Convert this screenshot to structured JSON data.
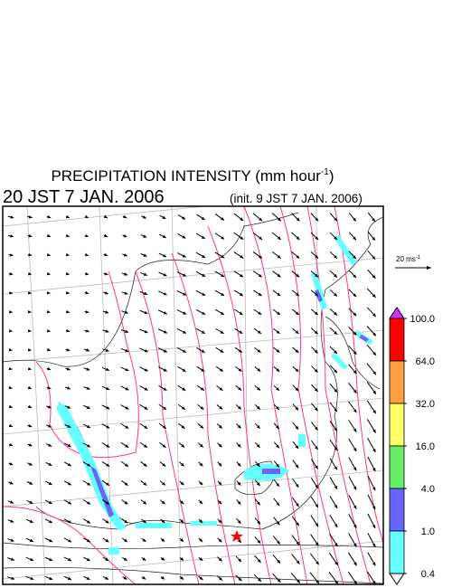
{
  "header": {
    "title_prefix": "PRECIPITATION INTENSITY (mm hour",
    "title_sup": "-1",
    "title_suffix": ")",
    "valid_time": "20 JST 7 JAN. 2006",
    "init_time": "(init. 9 JST 7 JAN. 2006)"
  },
  "wind_scale": {
    "label": "20 ms",
    "sup": "-1"
  },
  "colorbar": {
    "levels": [
      {
        "value": 100,
        "label": "100.0"
      },
      {
        "value": 64,
        "label": "64.0"
      },
      {
        "value": 32,
        "label": "32.0"
      },
      {
        "value": 16,
        "label": "16.0"
      },
      {
        "value": 4,
        "label": "4.0"
      },
      {
        "value": 1,
        "label": "1.0"
      },
      {
        "value": 0.4,
        "label": "0.4"
      }
    ],
    "colors": [
      "#cc33ff",
      "#ff0000",
      "#ffa040",
      "#ffff66",
      "#66ee66",
      "#6666ff",
      "#66ffff",
      "#ffffff"
    ]
  }
}
